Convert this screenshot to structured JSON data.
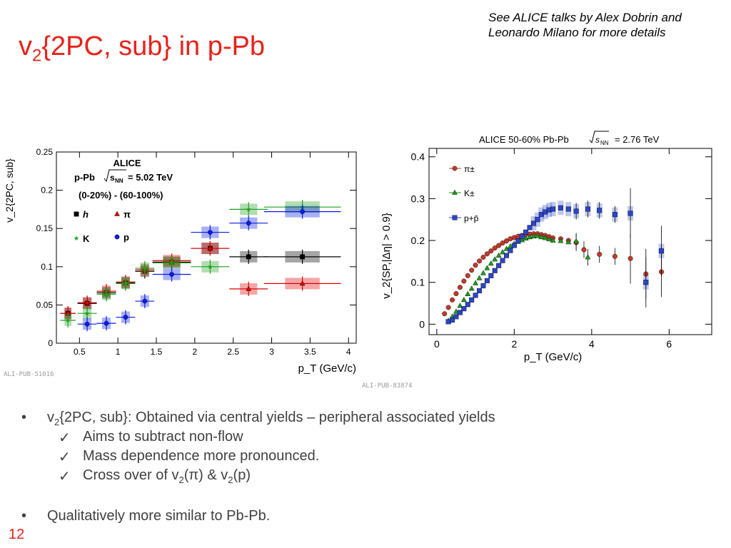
{
  "slide": {
    "title_base": "v",
    "title_sub": "2",
    "title_rest": "{2PC, sub} in p-Pb",
    "note_line1": "See ALICE talks by Alex Dobrin and",
    "note_line2": "Leonardo Milano for more details",
    "pub_left": "ALI-PUB-51016",
    "pub_right": "ALI-PUB-83874",
    "page_number": "12",
    "bullets": [
      {
        "kind": "bullet",
        "base": "v",
        "sub": "2",
        "text": "{2PC, sub}: Obtained via central yields – peripheral associated yields"
      },
      {
        "kind": "check",
        "text": "Aims to subtract non-flow"
      },
      {
        "kind": "check",
        "text": "Mass dependence more pronounced."
      },
      {
        "kind": "check",
        "parts": [
          "Cross over of v",
          "2",
          "(π) & v",
          "2",
          "(p)"
        ]
      },
      {
        "kind": "bullet",
        "text": "Qualitatively more similar to Pb-Pb."
      }
    ],
    "bullet_glyph": "•",
    "check_glyph": "✓",
    "colors": {
      "title": "#e5231b",
      "text": "#404040",
      "h": "#000000",
      "pi": "#e00000",
      "K": "#1fa01f",
      "p": "#0a1ee6",
      "pi_right": "#c0392b",
      "K_right": "#1e9a1e",
      "p_right": "#2b45c8"
    }
  },
  "chart_data": [
    {
      "type": "scatter",
      "xlabel": "p_T (GeV/c)",
      "ylabel": "v_2{2PC, sub}",
      "xlim": [
        0.2,
        4.1
      ],
      "ylim": [
        0,
        0.25
      ],
      "xticks": [
        0.5,
        1,
        1.5,
        2,
        2.5,
        3,
        3.5,
        4
      ],
      "xtick_labels": [
        "0.5",
        "1",
        "1.5",
        "2",
        "2.5",
        "3",
        "3.5",
        "4"
      ],
      "yticks": [
        0,
        0.05,
        0.1,
        0.15,
        0.2,
        0.25
      ],
      "ytick_labels": [
        "0",
        "0.05",
        "0.1",
        "0.15",
        "0.2",
        "0.25"
      ],
      "annotations": {
        "experiment": "ALICE",
        "system": "p-Pb",
        "energy": "= 5.02 TeV",
        "centrality": "(0-20%) - (60-100%)"
      },
      "legend_placement": "upper-left",
      "series": [
        {
          "name": "h",
          "marker": "square",
          "color": "#000000",
          "x": [
            0.35,
            0.6,
            0.85,
            1.1,
            1.35,
            1.7,
            2.2,
            2.7,
            3.4
          ],
          "y": [
            0.039,
            0.052,
            0.066,
            0.079,
            0.094,
            0.106,
            0.124,
            0.113,
            0.113
          ]
        },
        {
          "name": "π",
          "marker": "triangle",
          "color": "#e00000",
          "x": [
            0.35,
            0.6,
            0.85,
            1.1,
            1.35,
            1.7,
            2.2,
            2.7,
            3.4
          ],
          "y": [
            0.039,
            0.053,
            0.068,
            0.08,
            0.096,
            0.108,
            0.124,
            0.071,
            0.078
          ]
        },
        {
          "name": "K",
          "marker": "star",
          "color": "#1fa01f",
          "x": [
            0.35,
            0.6,
            0.85,
            1.1,
            1.35,
            1.7,
            2.2,
            2.7,
            3.4
          ],
          "y": [
            0.03,
            0.039,
            0.064,
            0.078,
            0.098,
            0.105,
            0.1,
            0.175,
            0.178
          ]
        },
        {
          "name": "p",
          "marker": "circle",
          "color": "#0a1ee6",
          "x": [
            0.6,
            0.85,
            1.1,
            1.35,
            1.7,
            2.2,
            2.7,
            3.4
          ],
          "y": [
            0.025,
            0.026,
            0.034,
            0.055,
            0.09,
            0.145,
            0.157,
            0.172
          ]
        }
      ]
    },
    {
      "type": "scatter",
      "title": "ALICE 50-60% Pb-Pb",
      "title_energy": "= 2.76 TeV",
      "xlabel": "p_T (GeV/c)",
      "ylabel": "v_2{SP,|Δη| > 0.9}",
      "xlim": [
        -0.2,
        7.1
      ],
      "ylim": [
        -0.025,
        0.42
      ],
      "xticks": [
        0,
        2,
        4,
        6
      ],
      "xtick_labels": [
        "0",
        "2",
        "4",
        "6"
      ],
      "yticks": [
        0,
        0.1,
        0.2,
        0.3,
        0.4
      ],
      "ytick_labels": [
        "0",
        "0.1",
        "0.2",
        "0.3",
        "0.4"
      ],
      "legend_placement": "upper-left",
      "series": [
        {
          "name": "π±",
          "marker": "circle",
          "color": "#c0392b",
          "x": [
            0.2,
            0.3,
            0.4,
            0.5,
            0.6,
            0.7,
            0.8,
            0.9,
            1.0,
            1.1,
            1.2,
            1.3,
            1.4,
            1.5,
            1.6,
            1.7,
            1.8,
            1.9,
            2.0,
            2.1,
            2.2,
            2.3,
            2.4,
            2.5,
            2.6,
            2.7,
            2.8,
            2.9,
            3.0,
            3.2,
            3.4,
            3.6,
            3.8,
            4.2,
            4.6,
            5.0,
            5.4,
            5.8
          ],
          "y": [
            0.025,
            0.04,
            0.058,
            0.073,
            0.088,
            0.103,
            0.116,
            0.129,
            0.141,
            0.151,
            0.16,
            0.168,
            0.175,
            0.182,
            0.188,
            0.194,
            0.199,
            0.204,
            0.207,
            0.21,
            0.212,
            0.214,
            0.215,
            0.216,
            0.216,
            0.214,
            0.212,
            0.209,
            0.206,
            0.204,
            0.2,
            0.195,
            0.178,
            0.167,
            0.162,
            0.157,
            0.12,
            0.125
          ]
        },
        {
          "name": "K±",
          "marker": "triangle",
          "color": "#1e9a1e",
          "x": [
            0.3,
            0.4,
            0.5,
            0.6,
            0.7,
            0.8,
            0.9,
            1.0,
            1.1,
            1.2,
            1.3,
            1.4,
            1.5,
            1.6,
            1.7,
            1.8,
            1.9,
            2.0,
            2.1,
            2.2,
            2.3,
            2.4,
            2.5,
            2.6,
            2.7,
            2.8,
            2.9,
            3.0,
            3.2,
            3.4,
            3.6,
            3.9
          ],
          "y": [
            0.008,
            0.018,
            0.03,
            0.044,
            0.058,
            0.072,
            0.085,
            0.098,
            0.11,
            0.122,
            0.134,
            0.145,
            0.155,
            0.164,
            0.172,
            0.18,
            0.186,
            0.192,
            0.197,
            0.201,
            0.205,
            0.208,
            0.21,
            0.211,
            0.208,
            0.206,
            0.203,
            0.2,
            0.199,
            0.196,
            0.198,
            0.16
          ]
        },
        {
          "name": "p+p̄",
          "marker": "square",
          "color": "#2b45c8",
          "x": [
            0.3,
            0.4,
            0.5,
            0.6,
            0.7,
            0.8,
            0.9,
            1.0,
            1.1,
            1.2,
            1.3,
            1.4,
            1.5,
            1.6,
            1.7,
            1.8,
            1.9,
            2.0,
            2.1,
            2.2,
            2.3,
            2.4,
            2.5,
            2.6,
            2.7,
            2.8,
            2.9,
            3.0,
            3.2,
            3.4,
            3.6,
            3.9,
            4.2,
            4.6,
            5.0,
            5.4,
            5.8
          ],
          "y": [
            0.006,
            0.01,
            0.018,
            0.028,
            0.037,
            0.047,
            0.058,
            0.069,
            0.08,
            0.092,
            0.104,
            0.116,
            0.128,
            0.14,
            0.152,
            0.164,
            0.176,
            0.188,
            0.199,
            0.21,
            0.22,
            0.231,
            0.241,
            0.25,
            0.262,
            0.268,
            0.273,
            0.275,
            0.278,
            0.275,
            0.27,
            0.275,
            0.272,
            0.262,
            0.265,
            0.1,
            0.175
          ]
        }
      ]
    }
  ]
}
